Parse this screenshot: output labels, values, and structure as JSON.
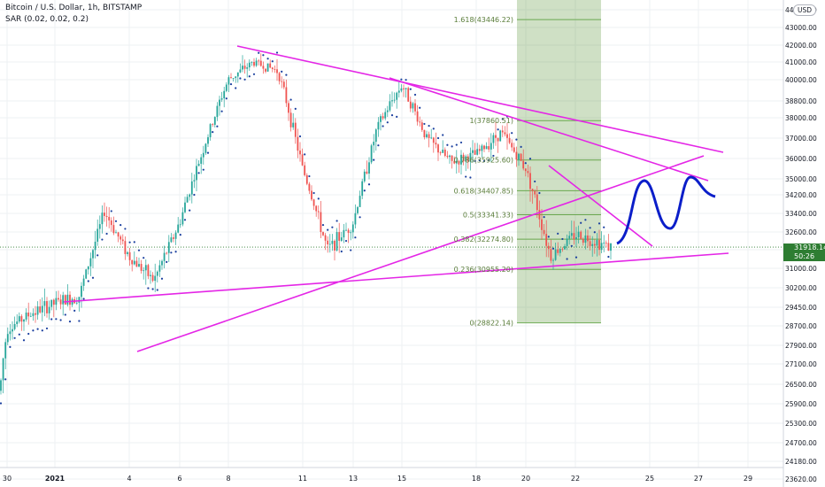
{
  "header": {
    "symbol_line": "Bitcoin / U.S. Dollar, 1h, BITSTAMP",
    "indicator_line": "SAR (0.02, 0.02, 0.2)",
    "currency_badge": "USD"
  },
  "price_axis": {
    "labels": [
      "44000.00",
      "43000.00",
      "42000.00",
      "41000.00",
      "40000.00",
      "38800.00",
      "38000.00",
      "37000.00",
      "36000.00",
      "35000.00",
      "34200.00",
      "33400.00",
      "32600.00",
      "31800.00",
      "31000.00",
      "30200.00",
      "29450.00",
      "28700.00",
      "27900.00",
      "27100.00",
      "26500.00",
      "25900.00",
      "25300.00",
      "24700.00",
      "24180.00",
      "23620.00"
    ],
    "last_price": "31918.14",
    "countdown": "50:26"
  },
  "time_axis": {
    "labels": [
      "30",
      "2021",
      "4",
      "6",
      "8",
      "11",
      "13",
      "15",
      "18",
      "20",
      "22",
      "25",
      "27",
      "29"
    ]
  },
  "fib_levels": [
    {
      "label": "1.618(43446.22)"
    },
    {
      "label": "1(37860.51)"
    },
    {
      "label": "0.786(35925.60)"
    },
    {
      "label": "0.618(34407.85)"
    },
    {
      "label": "0.5(33341.33)"
    },
    {
      "label": "0.382(32274.80)"
    },
    {
      "label": "0.236(30955.20)"
    },
    {
      "label": "0(28822.14)"
    }
  ],
  "colors": {
    "up": "#26a69a",
    "down": "#ef5350",
    "sar": "#1a3f9e",
    "trendline": "#e426e6",
    "projection": "#0b1ec9",
    "fib_zone": "rgba(76,140,40,0.27)",
    "fib_line": "#6aa84f",
    "last_price": "#2e7d32"
  },
  "chart_data": {
    "type": "candlestick",
    "symbol": "Bitcoin / U.S. Dollar",
    "interval": "1h",
    "exchange": "BITSTAMP",
    "indicator": "SAR (0.02, 0.02, 0.2)",
    "y_axis_ticks": [
      44000,
      43000,
      42000,
      41000,
      40000,
      38800,
      38000,
      37000,
      36000,
      35000,
      34200,
      33400,
      32600,
      31800,
      31000,
      30200,
      29450,
      28700,
      27900,
      27100,
      26500,
      25900,
      25300,
      24700,
      24180,
      23620
    ],
    "x_tick_labels": [
      "30",
      "2021",
      "4",
      "6",
      "8",
      "11",
      "13",
      "15",
      "18",
      "20",
      "22",
      "25",
      "27",
      "29"
    ],
    "approx_path": [
      [
        "Dec 29",
        26300
      ],
      [
        "Dec 30",
        28600
      ],
      [
        "Dec 31",
        29200
      ],
      [
        "Jan 1",
        29600
      ],
      [
        "Jan 2",
        29900
      ],
      [
        "Jan 3",
        33500
      ],
      [
        "Jan 4",
        31500
      ],
      [
        "Jan 5",
        30500
      ],
      [
        "Jan 6",
        33000
      ],
      [
        "Jan 7",
        36500
      ],
      [
        "Jan 8",
        40000
      ],
      [
        "Jan 9",
        41000
      ],
      [
        "Jan 10",
        40500
      ],
      [
        "Jan 11",
        35500
      ],
      [
        "Jan 12",
        31800
      ],
      [
        "Jan 13",
        33000
      ],
      [
        "Jan 14",
        37500
      ],
      [
        "Jan 15",
        39700
      ],
      [
        "Jan 16",
        37000
      ],
      [
        "Jan 17",
        35800
      ],
      [
        "Jan 18",
        36200
      ],
      [
        "Jan 19",
        37300
      ],
      [
        "Jan 20",
        35500
      ],
      [
        "Jan 21",
        31500
      ],
      [
        "Jan 22",
        32500
      ],
      [
        "Jan 23",
        31900
      ]
    ],
    "fibonacci_retracement": [
      {
        "level": 1.618,
        "price": 43446.22
      },
      {
        "level": 1,
        "price": 37860.51
      },
      {
        "level": 0.786,
        "price": 35925.6
      },
      {
        "level": 0.618,
        "price": 34407.85
      },
      {
        "level": 0.5,
        "price": 33341.33
      },
      {
        "level": 0.382,
        "price": 32274.8
      },
      {
        "level": 0.236,
        "price": 30955.2
      },
      {
        "level": 0,
        "price": 28822.14
      }
    ],
    "last_price": 31918.14,
    "grid": true
  }
}
